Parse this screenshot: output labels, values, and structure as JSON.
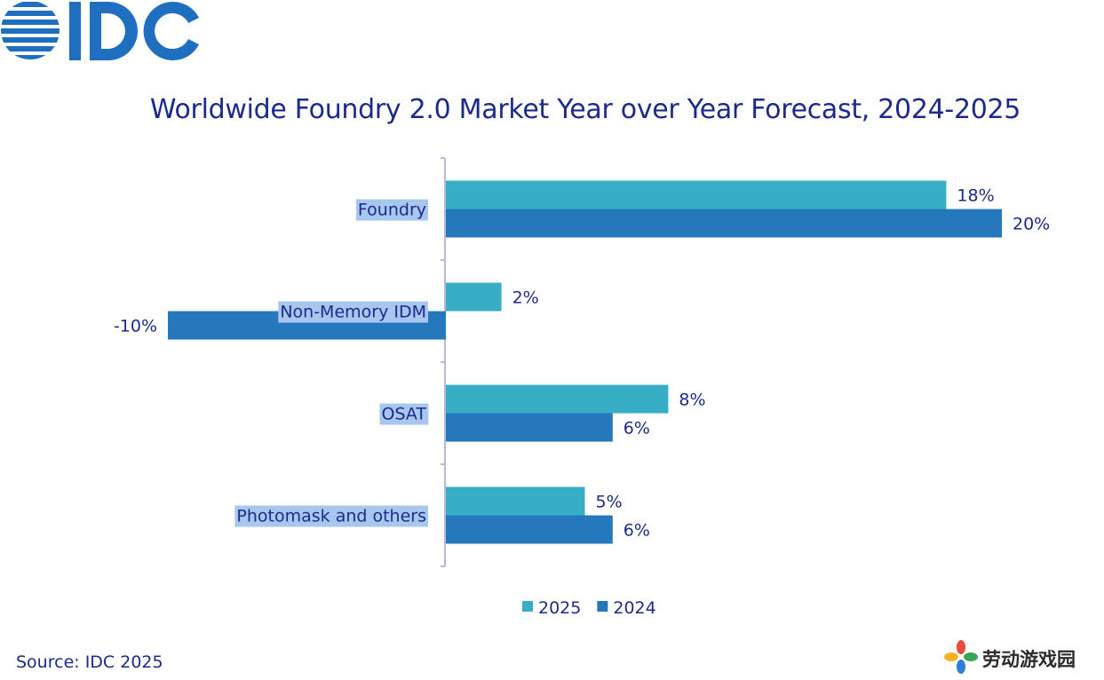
{
  "brand": {
    "logo_text": "IDC",
    "color": "#1f6fc0"
  },
  "title": "Worldwide Foundry 2.0 Market Year over Year Forecast, 2024-2025",
  "source": "Source: IDC 2025",
  "watermark": {
    "text": "劳动游戏园"
  },
  "colors": {
    "s2025": "#37adc6",
    "s2024": "#2678bd",
    "text": "#1c2a8c",
    "axis": "#b7b9dc",
    "label_bg": "#a7c7ef"
  },
  "chart_data": {
    "type": "bar",
    "orientation": "horizontal",
    "categories": [
      "Foundry",
      "Non-Memory IDM",
      "OSAT",
      "Photomask and others"
    ],
    "series": [
      {
        "name": "2025",
        "values": [
          18,
          2,
          8,
          5
        ],
        "labels": [
          "18%",
          "2%",
          "8%",
          "5%"
        ]
      },
      {
        "name": "2024",
        "values": [
          20,
          -10,
          6,
          6
        ],
        "labels": [
          "20%",
          "-10%",
          "6%",
          "6%"
        ]
      }
    ],
    "title": "Worldwide Foundry 2.0 Market Year over Year Forecast, 2024-2025",
    "xlabel": "",
    "ylabel": "",
    "value_unit": "%",
    "grid": false,
    "legend": "bottom"
  }
}
